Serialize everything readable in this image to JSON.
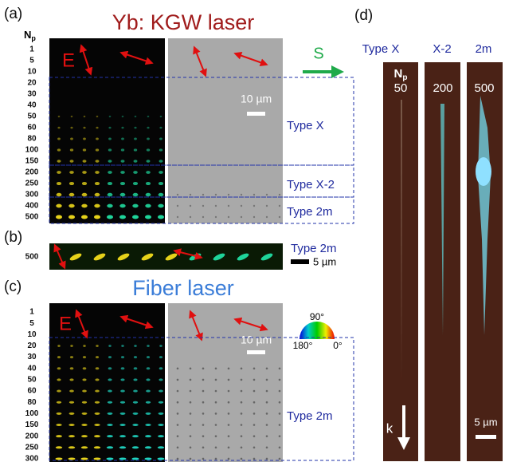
{
  "panel_a": {
    "label": "(a)",
    "title": "Yb: KGW laser",
    "np_label": {
      "main": "N",
      "sub": "p"
    },
    "rows": [
      "1",
      "5",
      "10",
      "20",
      "30",
      "40",
      "50",
      "60",
      "80",
      "100",
      "150",
      "200",
      "250",
      "300",
      "400",
      "500"
    ],
    "e_label": "E",
    "s_label": "S",
    "scale_bar": "10 µm",
    "regions": [
      "Type X",
      "Type X-2",
      "Type 2m"
    ]
  },
  "panel_b": {
    "label": "(b)",
    "row": "500",
    "region": "Type 2m",
    "scale_bar": "5 µm"
  },
  "panel_c": {
    "label": "(c)",
    "title": "Fiber laser",
    "rows": [
      "1",
      "5",
      "10",
      "20",
      "30",
      "40",
      "50",
      "60",
      "80",
      "100",
      "150",
      "200",
      "250",
      "300"
    ],
    "e_label": "E",
    "scale_bar": "10 µm",
    "wheel": {
      "top": "90°",
      "left": "180°",
      "right": "0°"
    },
    "region": "Type 2m"
  },
  "panel_d": {
    "label": "(d)",
    "columns": [
      "Type X",
      "X-2",
      "2m"
    ],
    "np_label": {
      "main": "N",
      "sub": "p"
    },
    "np_values": [
      "50",
      "200",
      "500"
    ],
    "k_label": "k",
    "scale_bar": "5 µm"
  }
}
